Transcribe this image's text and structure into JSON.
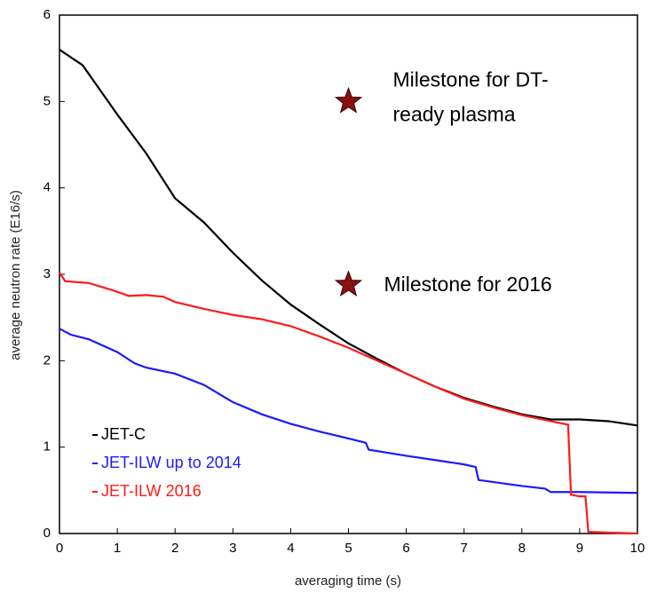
{
  "chart_data": {
    "type": "line",
    "xlabel": "averaging time (s)",
    "ylabel": "average neutron rate (E16/s)",
    "xlim": [
      0,
      10
    ],
    "ylim": [
      0,
      6
    ],
    "xticks": [
      0,
      1,
      2,
      3,
      4,
      5,
      6,
      7,
      8,
      9,
      10
    ],
    "yticks": [
      0,
      1,
      2,
      3,
      4,
      5,
      6
    ],
    "legend": "lower left",
    "series": [
      {
        "name": "JET-C",
        "color": "#000000",
        "x": [
          0,
          0.4,
          1,
          1.5,
          2,
          2.5,
          3,
          3.5,
          4,
          4.5,
          5,
          5.5,
          6,
          6.5,
          7,
          7.5,
          8,
          8.5,
          9,
          9.5,
          10
        ],
        "values": [
          5.6,
          5.42,
          4.85,
          4.4,
          3.88,
          3.6,
          3.25,
          2.93,
          2.65,
          2.42,
          2.2,
          2.02,
          1.85,
          1.7,
          1.57,
          1.47,
          1.38,
          1.32,
          1.32,
          1.3,
          1.25
        ]
      },
      {
        "name": "JET-ILW up to 2014",
        "color": "#1a1aff",
        "x": [
          0,
          0.2,
          0.5,
          1,
          1.3,
          1.5,
          2,
          2.5,
          3,
          3.5,
          4,
          4.5,
          5,
          5.3,
          5.35,
          6,
          6.5,
          7,
          7.2,
          7.25,
          8,
          8.4,
          8.5,
          9,
          10
        ],
        "values": [
          2.37,
          2.3,
          2.25,
          2.1,
          1.97,
          1.92,
          1.85,
          1.72,
          1.52,
          1.38,
          1.27,
          1.18,
          1.1,
          1.05,
          0.97,
          0.9,
          0.85,
          0.8,
          0.77,
          0.62,
          0.55,
          0.52,
          0.48,
          0.48,
          0.47
        ]
      },
      {
        "name": "JET-ILW 2016",
        "color": "#ff1a1a",
        "x": [
          0,
          0.1,
          0.5,
          0.9,
          1.2,
          1.5,
          1.8,
          2,
          2.5,
          3,
          3.5,
          4,
          4.5,
          5,
          5.5,
          6,
          6.5,
          7,
          7.5,
          8,
          8.5,
          8.8,
          8.85,
          9,
          9.1,
          9.15,
          9.5,
          10
        ],
        "values": [
          3.02,
          2.92,
          2.9,
          2.82,
          2.75,
          2.76,
          2.74,
          2.68,
          2.6,
          2.53,
          2.48,
          2.4,
          2.28,
          2.15,
          2.0,
          1.85,
          1.7,
          1.56,
          1.46,
          1.37,
          1.3,
          1.26,
          0.45,
          0.43,
          0.43,
          0.02,
          0.01,
          0
        ]
      }
    ],
    "annotations": [
      {
        "x": 5,
        "y": 5,
        "color": "#8b1010",
        "text_lines": [
          "Milestone for DT-",
          "ready plasma"
        ]
      },
      {
        "x": 5,
        "y": 2.88,
        "color": "#8b1010",
        "text_lines": [
          "Milestone for 2016"
        ]
      }
    ]
  }
}
